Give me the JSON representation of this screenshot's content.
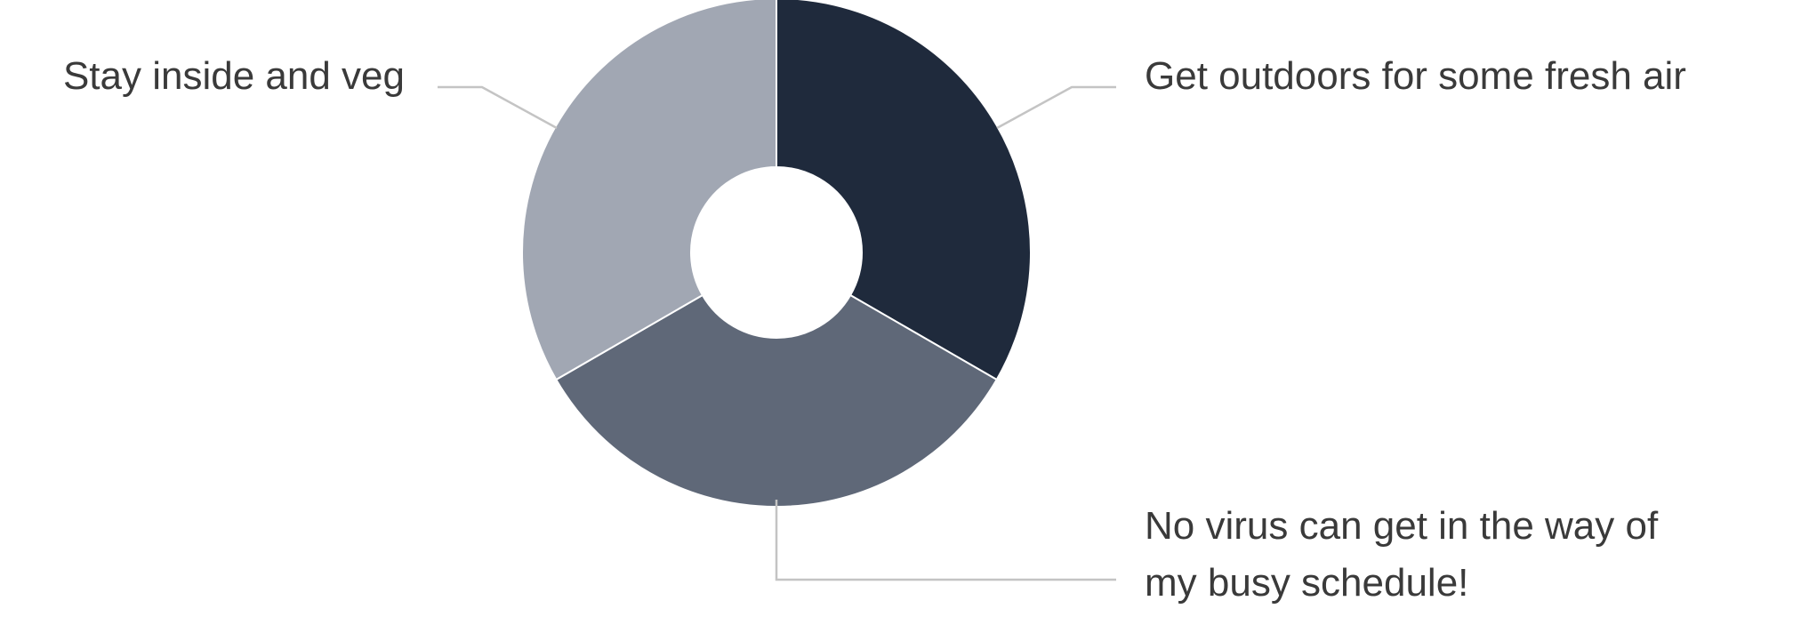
{
  "chart_data": {
    "type": "pie",
    "donut": true,
    "legend": "none",
    "slices": [
      {
        "label": "Get outdoors for some fresh air",
        "label_lines": [
          "Get outdoors for some fresh air"
        ],
        "value": 33.3,
        "color": "#1f2a3c"
      },
      {
        "label": "No virus can get in the way of my busy schedule!",
        "label_lines": [
          "No virus can get in the way of",
          "my busy schedule!"
        ],
        "value": 33.3,
        "color": "#5f6878"
      },
      {
        "label": "Stay inside and veg",
        "label_lines": [
          "Stay inside and veg"
        ],
        "value": 33.3,
        "color": "#a1a7b3"
      }
    ],
    "leader_color": "#c4c4c4"
  }
}
